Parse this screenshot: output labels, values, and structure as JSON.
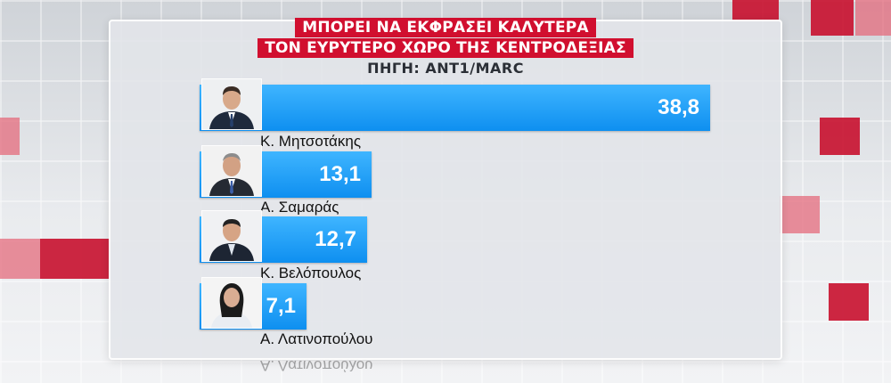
{
  "title_lines": [
    "ΜΠΟΡΕΙ ΝΑ ΕΚΦΡΑΣΕΙ ΚΑΛΥΤΕΡΑ",
    "ΤΟΝ ΕΥΡΥΤΕΡΟ ΧΩΡΟ ΤΗΣ ΚΕΝΤΡΟΔΕΞΙΑΣ"
  ],
  "source": "ΠΗΓΗ: ANT1/MARC",
  "colors": {
    "accent": "#d10f2f",
    "bar": "#1a9cf5",
    "bar_text": "#ffffff"
  },
  "chart_data": {
    "type": "bar",
    "orientation": "horizontal",
    "title": "ΜΠΟΡΕΙ ΝΑ ΕΚΦΡΑΣΕΙ ΚΑΛΥΤΕΡΑ ΤΟΝ ΕΥΡΥΤΕΡΟ ΧΩΡΟ ΤΗΣ ΚΕΝΤΡΟΔΕΞΙΑΣ",
    "subtitle": "ΠΗΓΗ: ANT1/MARC",
    "categories": [
      "Κ. Μητσοτάκης",
      "Α. Σαμαράς",
      "Κ. Βελόπουλος",
      "Α. Λατινοπούλου"
    ],
    "values": [
      38.8,
      13.1,
      12.7,
      7.1
    ],
    "value_labels": [
      "38,8",
      "13,1",
      "12,7",
      "7,1"
    ],
    "xlim": [
      0,
      38.8
    ],
    "grid": false,
    "legend": "none"
  },
  "reflection_text": "Α. Λατινοπούλου"
}
